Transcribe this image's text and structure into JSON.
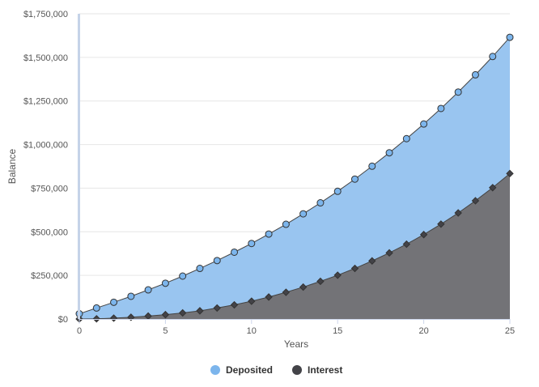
{
  "chart_data": {
    "type": "area",
    "xlabel": "Years",
    "ylabel": "Balance",
    "xlim": [
      0,
      25
    ],
    "ylim": [
      0,
      1750000
    ],
    "x_ticks": [
      0,
      5,
      10,
      15,
      20,
      25
    ],
    "x_tick_labels": [
      "0",
      "5",
      "10",
      "15",
      "20",
      "25"
    ],
    "y_ticks": [
      0,
      250000,
      500000,
      750000,
      1000000,
      1250000,
      1500000,
      1750000
    ],
    "y_tick_labels": [
      "$0",
      "$250,000",
      "$500,000",
      "$750,000",
      "$1,000,000",
      "$1,250,000",
      "$1,500,000",
      "$1,750,000"
    ],
    "grid": true,
    "legend_position": "bottom-center",
    "x": [
      0,
      1,
      2,
      3,
      4,
      5,
      6,
      7,
      8,
      9,
      10,
      11,
      12,
      13,
      14,
      15,
      16,
      17,
      18,
      19,
      20,
      21,
      22,
      23,
      24,
      25
    ],
    "series": [
      {
        "name": "Deposited",
        "color": "#7cb5ec",
        "fill": "#99c5f0",
        "marker": "circle",
        "values": [
          30000,
          63000,
          96000,
          130000,
          167000,
          205000,
          246000,
          290000,
          335000,
          383000,
          433000,
          487000,
          543000,
          603000,
          666000,
          732000,
          802000,
          876000,
          953000,
          1034000,
          1118000,
          1207000,
          1301000,
          1400000,
          1505000,
          1615000
        ]
      },
      {
        "name": "Interest",
        "color": "#434348",
        "fill": "#737377",
        "marker": "diamond",
        "values": [
          0,
          1000,
          5000,
          10000,
          17000,
          25000,
          35000,
          47000,
          63000,
          81000,
          102000,
          126000,
          153000,
          183000,
          216000,
          251000,
          290000,
          333000,
          379000,
          429000,
          484000,
          544000,
          608000,
          678000,
          753000,
          834000
        ]
      }
    ]
  }
}
